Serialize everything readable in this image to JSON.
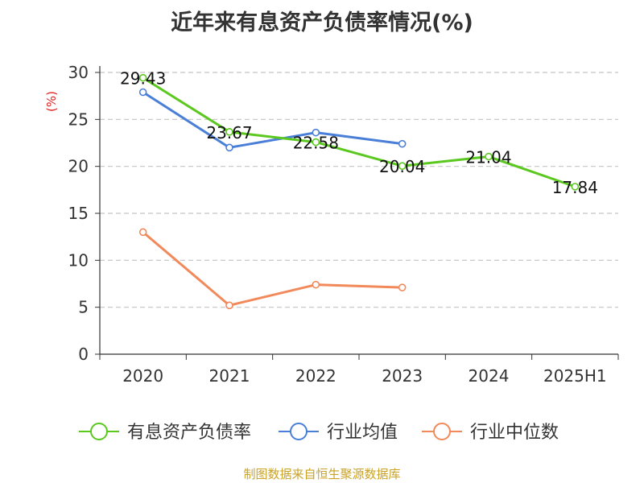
{
  "chart_data": {
    "type": "line",
    "title": "近年来有息资产负债率情况(%)",
    "ylabel": "(%)",
    "categories": [
      "2020",
      "2021",
      "2022",
      "2023",
      "2024",
      "2025H1"
    ],
    "ylim": [
      0,
      30
    ],
    "yticks": [
      "0",
      "5",
      "10",
      "15",
      "20",
      "25",
      "30"
    ],
    "grid": true,
    "legend_position": "bottom",
    "series": [
      {
        "name": "有息资产负债率",
        "color": "#5bc81f",
        "values": [
          29.43,
          23.67,
          22.58,
          20.04,
          21.04,
          17.84
        ],
        "labels": [
          "29.43",
          "23.67",
          "22.58",
          "20.04",
          "21.04",
          "17.84"
        ]
      },
      {
        "name": "行业均值",
        "color": "#4a7fd8",
        "values": [
          27.9,
          22.0,
          23.6,
          22.4,
          null,
          null
        ]
      },
      {
        "name": "行业中位数",
        "color": "#f2895a",
        "values": [
          13.0,
          5.2,
          7.4,
          7.1,
          null,
          null
        ]
      }
    ]
  },
  "source": {
    "text": "制图数据来自恒生聚源数据库",
    "color": "#c9a227"
  }
}
